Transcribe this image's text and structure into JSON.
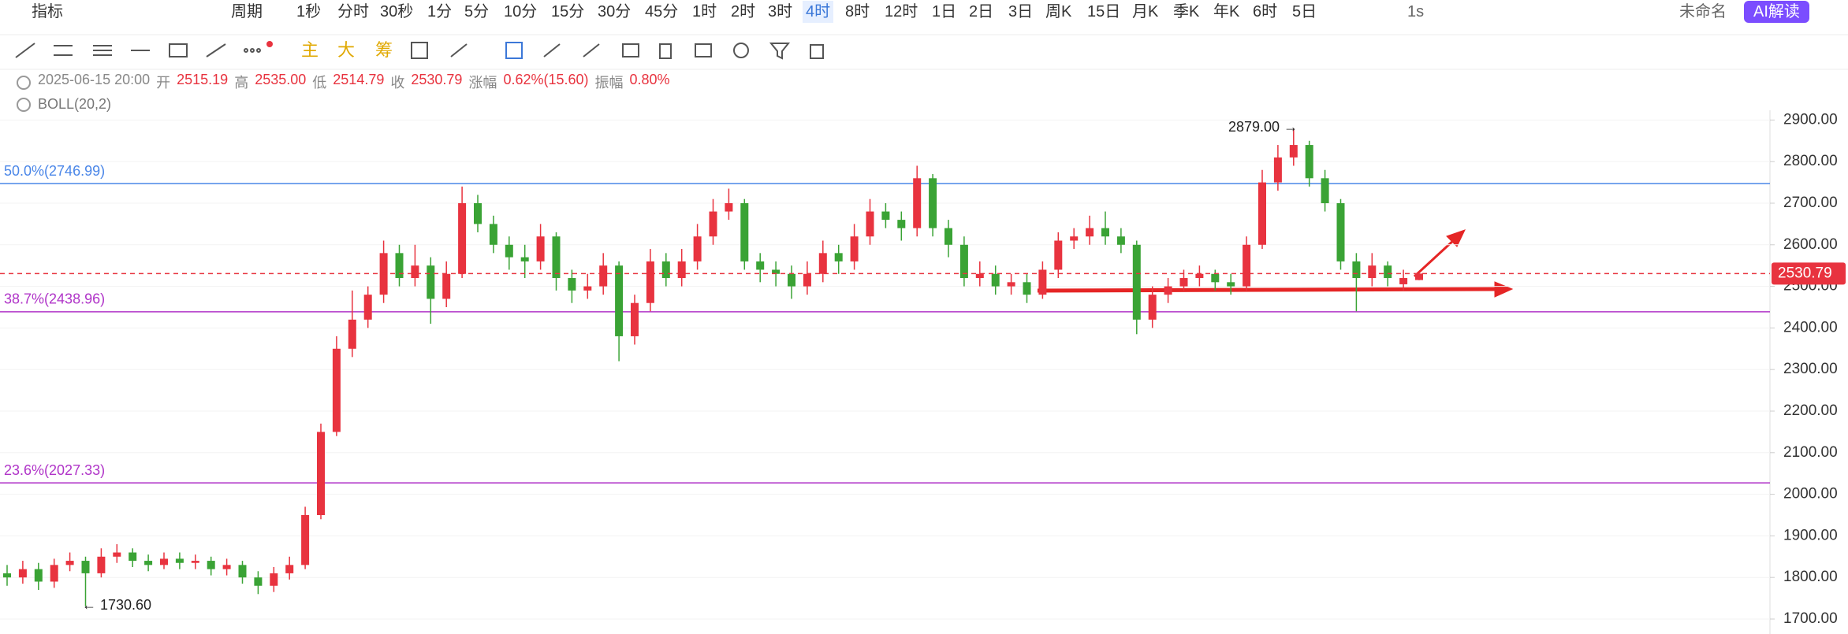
{
  "toolbar": {
    "indicator_button": "指标",
    "period_button": "周期",
    "periods": [
      "1秒",
      "分时",
      "30秒",
      "1分",
      "5分",
      "10分",
      "15分",
      "30分",
      "45分",
      "1时",
      "2时",
      "3时",
      "4时",
      "8时",
      "12时",
      "1日",
      "2日",
      "3日",
      "周K",
      "15日",
      "月K",
      "季K",
      "年K",
      "6时",
      "5日"
    ],
    "active_period": 12,
    "speed": "1s",
    "layout_name": "未命名",
    "ai_button": "AI解读"
  },
  "drawing_tools": {
    "main": "主",
    "big": "大",
    "chips": "筹"
  },
  "info": {
    "datetime": "2025-06-15 20:00",
    "fields": [
      {
        "label": "开",
        "value": "2515.19"
      },
      {
        "label": "高",
        "value": "2535.00"
      },
      {
        "label": "低",
        "value": "2514.79"
      },
      {
        "label": "收",
        "value": "2530.79"
      },
      {
        "label": "涨幅",
        "value": "0.62%(15.60)"
      },
      {
        "label": "振幅",
        "value": "0.80%"
      }
    ],
    "indicator": "BOLL(20,2)"
  },
  "chart_data": {
    "type": "candlestick",
    "up_color": "#e8333f",
    "down_color": "#3aa335",
    "grid": true,
    "ylim": [
      1664,
      2914
    ],
    "yticks": [
      {
        "value": 1700,
        "label": "1700.00"
      },
      {
        "value": 1800,
        "label": "1800.00"
      },
      {
        "value": 1900,
        "label": "1900.00"
      },
      {
        "value": 2000,
        "label": "2000.00"
      },
      {
        "value": 2100,
        "label": "2100.00"
      },
      {
        "value": 2200,
        "label": "2200.00"
      },
      {
        "value": 2300,
        "label": "2300.00"
      },
      {
        "value": 2400,
        "label": "2400.00"
      },
      {
        "value": 2500,
        "label": "2500.00"
      },
      {
        "value": 2600,
        "label": "2600.00"
      },
      {
        "value": 2700,
        "label": "2700.00"
      },
      {
        "value": 2800,
        "label": "2800.00"
      },
      {
        "value": 2900,
        "label": "2900.00"
      }
    ],
    "open": [
      1810,
      1800,
      1820,
      1790,
      1830,
      1840,
      1810,
      1850,
      1860,
      1840,
      1830,
      1845,
      1835,
      1840,
      1820,
      1830,
      1800,
      1780,
      1810,
      1830,
      1950,
      2150,
      2350,
      2420,
      2480,
      2580,
      2520,
      2550,
      2470,
      2530,
      2700,
      2650,
      2600,
      2570,
      2560,
      2620,
      2520,
      2490,
      2500,
      2550,
      2380,
      2460,
      2560,
      2520,
      2560,
      2620,
      2680,
      2700,
      2560,
      2540,
      2530,
      2500,
      2530,
      2580,
      2560,
      2620,
      2680,
      2660,
      2640,
      2760,
      2640,
      2600,
      2520,
      2530,
      2500,
      2510,
      2480,
      2540,
      2610,
      2620,
      2640,
      2620,
      2600,
      2420,
      2480,
      2500,
      2520,
      2530,
      2510,
      2500,
      2600,
      2750,
      2810,
      2840,
      2760,
      2700,
      2560,
      2520,
      2550,
      2505,
      2515.19
    ],
    "high": [
      1830,
      1840,
      1835,
      1845,
      1860,
      1850,
      1870,
      1880,
      1870,
      1855,
      1860,
      1860,
      1855,
      1850,
      1845,
      1840,
      1815,
      1825,
      1850,
      1970,
      2170,
      2380,
      2490,
      2500,
      2610,
      2600,
      2600,
      2570,
      2560,
      2740,
      2720,
      2670,
      2620,
      2600,
      2650,
      2630,
      2540,
      2530,
      2580,
      2560,
      2480,
      2590,
      2580,
      2590,
      2650,
      2710,
      2735,
      2710,
      2580,
      2560,
      2550,
      2560,
      2610,
      2600,
      2650,
      2710,
      2700,
      2680,
      2790,
      2770,
      2660,
      2620,
      2560,
      2550,
      2530,
      2530,
      2560,
      2630,
      2640,
      2670,
      2680,
      2640,
      2610,
      2500,
      2520,
      2540,
      2550,
      2540,
      2530,
      2620,
      2780,
      2840,
      2879,
      2850,
      2780,
      2710,
      2580,
      2580,
      2560,
      2540,
      2535
    ],
    "low": [
      1780,
      1785,
      1770,
      1775,
      1815,
      1730.6,
      1800,
      1835,
      1825,
      1815,
      1820,
      1820,
      1820,
      1805,
      1805,
      1785,
      1760,
      1765,
      1795,
      1820,
      1940,
      2140,
      2330,
      2400,
      2460,
      2500,
      2500,
      2410,
      2450,
      2520,
      2630,
      2580,
      2540,
      2520,
      2540,
      2490,
      2460,
      2470,
      2480,
      2320,
      2360,
      2440,
      2500,
      2500,
      2540,
      2600,
      2660,
      2540,
      2510,
      2500,
      2470,
      2480,
      2510,
      2530,
      2540,
      2600,
      2640,
      2610,
      2620,
      2620,
      2570,
      2500,
      2500,
      2480,
      2480,
      2460,
      2470,
      2520,
      2590,
      2600,
      2600,
      2580,
      2385,
      2400,
      2460,
      2490,
      2500,
      2490,
      2480,
      2490,
      2590,
      2730,
      2790,
      2740,
      2680,
      2540,
      2440,
      2500,
      2500,
      2490,
      2514.79
    ],
    "close": [
      1800,
      1820,
      1790,
      1830,
      1840,
      1810,
      1850,
      1860,
      1840,
      1830,
      1845,
      1835,
      1840,
      1820,
      1830,
      1800,
      1780,
      1810,
      1830,
      1950,
      2150,
      2350,
      2420,
      2480,
      2580,
      2520,
      2550,
      2470,
      2530,
      2700,
      2650,
      2600,
      2570,
      2560,
      2620,
      2520,
      2490,
      2500,
      2550,
      2380,
      2460,
      2560,
      2520,
      2560,
      2620,
      2680,
      2700,
      2560,
      2540,
      2530,
      2500,
      2530,
      2580,
      2560,
      2620,
      2680,
      2660,
      2640,
      2760,
      2640,
      2600,
      2520,
      2530,
      2500,
      2510,
      2480,
      2540,
      2610,
      2620,
      2640,
      2620,
      2600,
      2420,
      2480,
      2500,
      2520,
      2530,
      2510,
      2500,
      2600,
      2750,
      2810,
      2840,
      2760,
      2700,
      2560,
      2520,
      2550,
      2520,
      2520,
      2530.79
    ],
    "levels": [
      {
        "label": "50.0%(2746.99)",
        "value": 2746.99,
        "color": "#4a86e8"
      },
      {
        "label": "38.7%(2438.96)",
        "value": 2438.96,
        "color": "#b034c8"
      },
      {
        "label": "23.6%(2027.33)",
        "value": 2027.33,
        "color": "#b034c8"
      }
    ],
    "last_price": 2530.79,
    "annotations": [
      {
        "text": "2879.00 →"
      },
      {
        "text": "← 1730.60"
      }
    ]
  }
}
